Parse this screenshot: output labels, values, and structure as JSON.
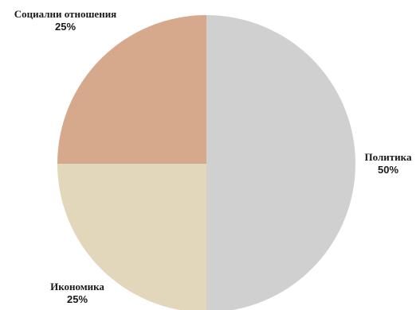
{
  "chart_data": {
    "type": "pie",
    "slices": [
      {
        "label": "Политика",
        "value": 50,
        "percent_label": "50%",
        "color": "#d0d0d0"
      },
      {
        "label": "Икономика",
        "value": 25,
        "percent_label": "25%",
        "color": "#e2d6bb"
      },
      {
        "label": "Социални отношения",
        "value": 25,
        "percent_label": "25%",
        "color": "#d6a98d"
      }
    ],
    "start": "12 o'clock",
    "direction": "clockwise",
    "legend": "none",
    "labels": "outside"
  }
}
